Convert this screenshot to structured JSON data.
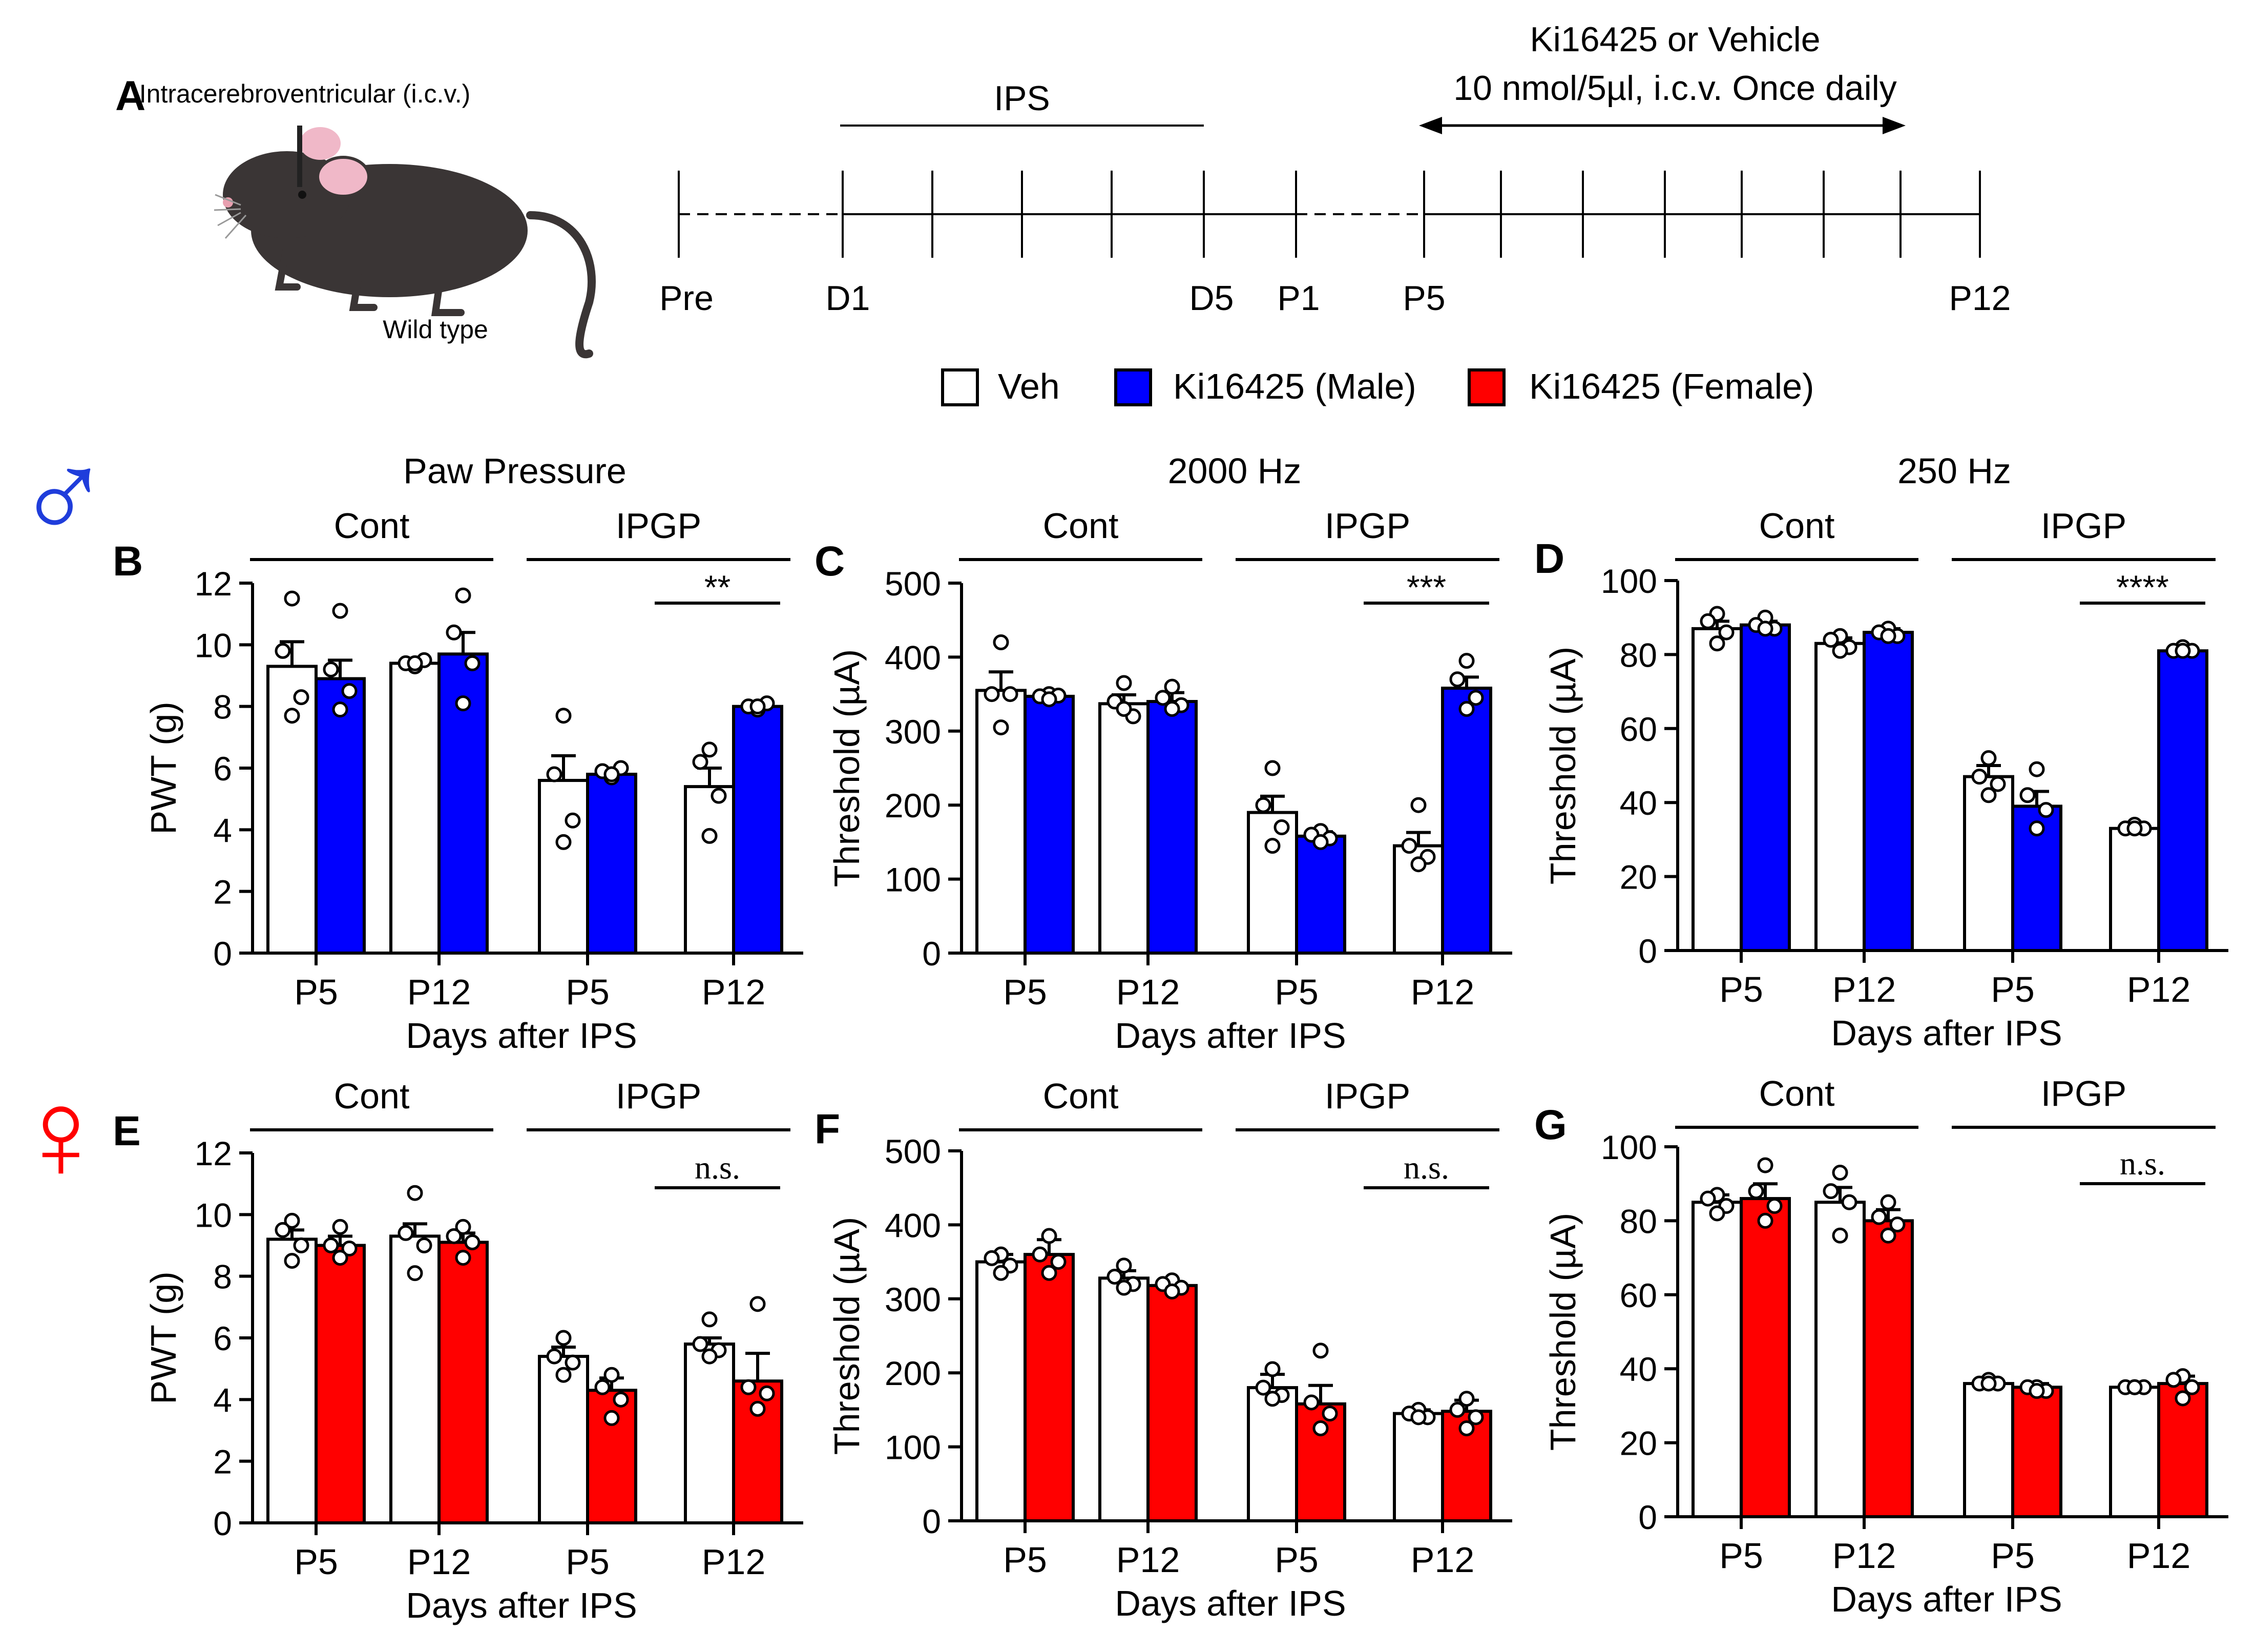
{
  "colors": {
    "veh": "#ffffff",
    "male": "#0000ff",
    "female": "#ff0000",
    "axis": "#000000",
    "male_symbol": "#1f3ddb",
    "female_symbol": "#ff0000"
  },
  "panel_a": {
    "letter": "A",
    "mouse_label": "Intracerebroventricular (i.c.v.)",
    "mouse_caption": "Wild type",
    "ips_label": "IPS",
    "treatment_line1": "Ki16425 or Vehicle",
    "treatment_line2": "10 nmol/5µl, i.c.v. Once daily",
    "timeline_labels": [
      "Pre",
      "D1",
      "D5",
      "P1",
      "P5",
      "P12"
    ]
  },
  "legend": {
    "items": [
      "Veh",
      "Ki16425 (Male)",
      "Ki16425 (Female)"
    ]
  },
  "sex_symbols": {
    "male": "♂",
    "female": "♀"
  },
  "chart_data": [
    {
      "id": "B",
      "letter": "B",
      "type": "bar",
      "title": "Paw Pressure",
      "ylabel": "PWT (g)",
      "xlabel": "Days after IPS",
      "ylim": [
        0,
        12
      ],
      "yticks": [
        0,
        2,
        4,
        6,
        8,
        10,
        12
      ],
      "ticklabels": [
        "0",
        "2",
        "4",
        "6",
        "8",
        "10",
        "12"
      ],
      "groups": [
        "Cont",
        "IPGP"
      ],
      "categories": [
        "P5",
        "P12",
        "P5",
        "P12"
      ],
      "treat": "male",
      "series": [
        {
          "name": "Veh",
          "values": [
            9.3,
            9.4,
            5.6,
            5.4
          ],
          "err": [
            0.8,
            0.1,
            0.8,
            0.6
          ]
        },
        {
          "name": "Ki16425 (Male)",
          "values": [
            8.9,
            9.7,
            5.8,
            8.0
          ],
          "err": [
            0.6,
            0.7,
            0.2,
            0.1
          ]
        }
      ],
      "points": [
        [
          [
            11.5,
            9.8,
            8.3,
            7.7
          ],
          [
            11.1,
            9.2,
            8.5,
            7.9
          ]
        ],
        [
          [
            9.3,
            9.4,
            9.5,
            9.4
          ],
          [
            11.6,
            10.4,
            9.4,
            8.1
          ]
        ],
        [
          [
            7.7,
            5.8,
            4.3,
            3.6
          ],
          [
            5.7,
            5.9,
            6.0,
            5.8
          ]
        ],
        [
          [
            6.6,
            6.2,
            5.1,
            3.8
          ],
          [
            7.9,
            8.0,
            8.1,
            8.0
          ]
        ]
      ],
      "significance": "**"
    },
    {
      "id": "C",
      "letter": "C",
      "type": "bar",
      "title": "2000 Hz",
      "ylabel": "Threshold (µA)",
      "xlabel": "Days after IPS",
      "ylim": [
        0,
        500
      ],
      "yticks": [
        0,
        100,
        200,
        300,
        400,
        500
      ],
      "ticklabels": [
        "0",
        "100",
        "200",
        "300",
        "400",
        "500"
      ],
      "groups": [
        "Cont",
        "IPGP"
      ],
      "categories": [
        "P5",
        "P12",
        "P5",
        "P12"
      ],
      "treat": "male",
      "series": [
        {
          "name": "Veh",
          "values": [
            355,
            337,
            190,
            145
          ],
          "err": [
            25,
            12,
            22,
            18
          ]
        },
        {
          "name": "Ki16425 (Male)",
          "values": [
            347,
            340,
            158,
            358
          ],
          "err": [
            5,
            12,
            6,
            15
          ]
        }
      ],
      "points": [
        [
          [
            420,
            350,
            350,
            305
          ],
          [
            350,
            347,
            348,
            343
          ]
        ],
        [
          [
            365,
            340,
            320,
            330
          ],
          [
            360,
            345,
            335,
            330
          ]
        ],
        [
          [
            250,
            200,
            170,
            145
          ],
          [
            165,
            160,
            155,
            150
          ]
        ],
        [
          [
            200,
            145,
            130,
            120
          ],
          [
            395,
            370,
            345,
            330
          ]
        ]
      ],
      "significance": "***"
    },
    {
      "id": "D",
      "letter": "D",
      "type": "bar",
      "title": "250 Hz",
      "ylabel": "Threshold (µA)",
      "xlabel": "Days after IPS",
      "ylim": [
        0,
        100
      ],
      "yticks": [
        0,
        20,
        40,
        60,
        80,
        100
      ],
      "ticklabels": [
        "0",
        "20",
        "40",
        "60",
        "80",
        "100"
      ],
      "groups": [
        "Cont",
        "IPGP"
      ],
      "categories": [
        "P5",
        "P12",
        "P5",
        "P12"
      ],
      "treat": "male",
      "series": [
        {
          "name": "Veh",
          "values": [
            87,
            83,
            47,
            33
          ],
          "err": [
            2,
            1.5,
            3,
            1
          ]
        },
        {
          "name": "Ki16425 (Male)",
          "values": [
            88,
            86,
            39,
            81
          ],
          "err": [
            1,
            1,
            4,
            0.5
          ]
        }
      ],
      "points": [
        [
          [
            91,
            89,
            86,
            83
          ],
          [
            90,
            88,
            87,
            87
          ]
        ],
        [
          [
            85,
            84,
            82,
            81
          ],
          [
            87,
            86,
            85,
            85
          ]
        ],
        [
          [
            52,
            47,
            45,
            42
          ],
          [
            49,
            42,
            38,
            33
          ]
        ],
        [
          [
            34,
            33,
            33,
            33
          ],
          [
            82,
            81,
            81,
            81
          ]
        ]
      ],
      "significance": "****"
    },
    {
      "id": "E",
      "letter": "E",
      "type": "bar",
      "title": "",
      "ylabel": "PWT (g)",
      "xlabel": "Days after IPS",
      "ylim": [
        0,
        12
      ],
      "yticks": [
        0,
        2,
        4,
        6,
        8,
        10,
        12
      ],
      "ticklabels": [
        "0",
        "2",
        "4",
        "6",
        "8",
        "10",
        "12"
      ],
      "groups": [
        "Cont",
        "IPGP"
      ],
      "categories": [
        "P5",
        "P12",
        "P5",
        "P12"
      ],
      "treat": "female",
      "series": [
        {
          "name": "Veh",
          "values": [
            9.2,
            9.3,
            5.4,
            5.8
          ],
          "err": [
            0.3,
            0.4,
            0.3,
            0.2
          ]
        },
        {
          "name": "Ki16425 (Female)",
          "values": [
            9.0,
            9.1,
            4.3,
            4.6
          ],
          "err": [
            0.3,
            0.3,
            0.4,
            0.9
          ]
        }
      ],
      "points": [
        [
          [
            9.8,
            9.5,
            9.0,
            8.5
          ],
          [
            9.6,
            9.0,
            8.9,
            8.6
          ]
        ],
        [
          [
            10.7,
            9.4,
            9.0,
            8.1
          ],
          [
            9.6,
            9.3,
            9.1,
            8.6
          ]
        ],
        [
          [
            6.0,
            5.4,
            5.2,
            4.8
          ],
          [
            4.8,
            4.4,
            4.0,
            3.4
          ]
        ],
        [
          [
            6.6,
            5.8,
            5.6,
            5.4
          ],
          [
            7.1,
            4.4,
            4.2,
            3.7
          ]
        ]
      ],
      "significance": "n.s."
    },
    {
      "id": "F",
      "letter": "F",
      "type": "bar",
      "title": "",
      "ylabel": "Threshold (µA)",
      "xlabel": "Days after IPS",
      "ylim": [
        0,
        500
      ],
      "yticks": [
        0,
        100,
        200,
        300,
        400,
        500
      ],
      "ticklabels": [
        "0",
        "100",
        "200",
        "300",
        "400",
        "500"
      ],
      "groups": [
        "Cont",
        "IPGP"
      ],
      "categories": [
        "P5",
        "P12",
        "P5",
        "P12"
      ],
      "treat": "female",
      "series": [
        {
          "name": "Veh",
          "values": [
            350,
            328,
            180,
            145
          ],
          "err": [
            10,
            10,
            18,
            5
          ]
        },
        {
          "name": "Ki16425 (Female)",
          "values": [
            360,
            318,
            158,
            148
          ],
          "err": [
            20,
            5,
            25,
            15
          ]
        }
      ],
      "points": [
        [
          [
            360,
            355,
            345,
            335
          ],
          [
            385,
            360,
            350,
            335
          ]
        ],
        [
          [
            345,
            330,
            320,
            315
          ],
          [
            325,
            320,
            315,
            310
          ]
        ],
        [
          [
            205,
            180,
            170,
            165
          ],
          [
            230,
            160,
            145,
            125
          ]
        ],
        [
          [
            150,
            145,
            140,
            140
          ],
          [
            165,
            150,
            140,
            125
          ]
        ]
      ],
      "significance": "n.s."
    },
    {
      "id": "G",
      "letter": "G",
      "type": "bar",
      "title": "",
      "ylabel": "Threshold (µA)",
      "xlabel": "Days after IPS",
      "ylim": [
        0,
        100
      ],
      "yticks": [
        0,
        20,
        40,
        60,
        80,
        100
      ],
      "ticklabels": [
        "0",
        "20",
        "40",
        "60",
        "80",
        "100"
      ],
      "groups": [
        "Cont",
        "IPGP"
      ],
      "categories": [
        "P5",
        "P12",
        "P5",
        "P12"
      ],
      "treat": "female",
      "series": [
        {
          "name": "Veh",
          "values": [
            85,
            85,
            36,
            35
          ],
          "err": [
            2,
            4,
            1,
            0.5
          ]
        },
        {
          "name": "Ki16425 (Female)",
          "values": [
            86,
            80,
            35,
            36
          ],
          "err": [
            4,
            3,
            1,
            2
          ]
        }
      ],
      "points": [
        [
          [
            87,
            86,
            84,
            82
          ],
          [
            95,
            88,
            84,
            80
          ]
        ],
        [
          [
            93,
            88,
            85,
            76
          ],
          [
            85,
            81,
            79,
            76
          ]
        ],
        [
          [
            37,
            36,
            36,
            36
          ],
          [
            35,
            35,
            34,
            34
          ]
        ],
        [
          [
            35,
            35,
            35,
            35
          ],
          [
            38,
            37,
            35,
            32
          ]
        ]
      ],
      "significance": "n.s."
    }
  ]
}
